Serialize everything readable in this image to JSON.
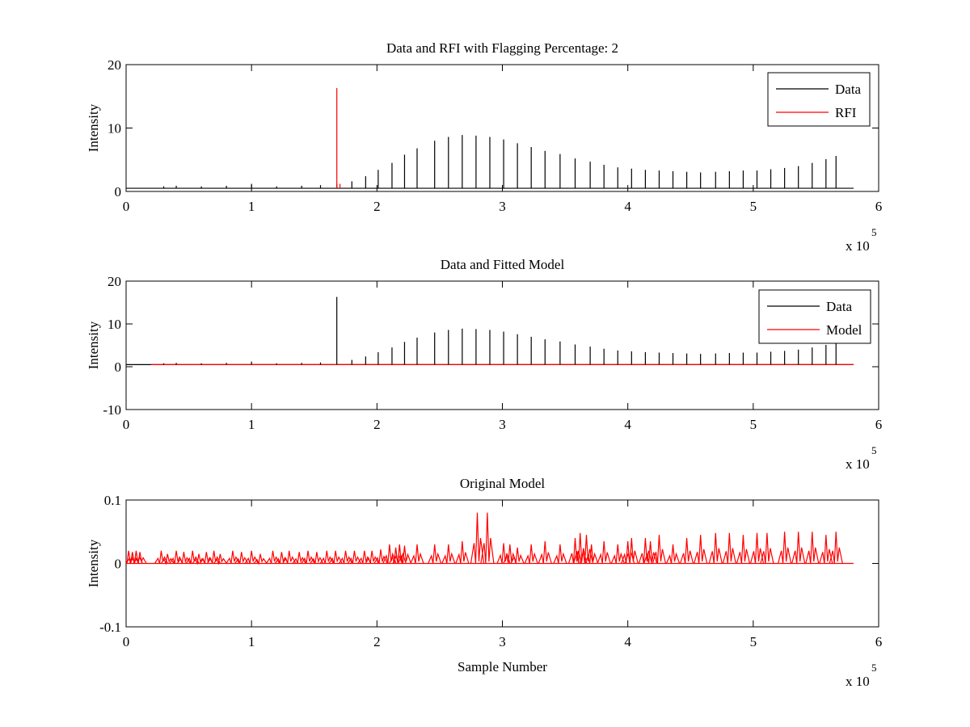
{
  "figure": {
    "colors": {
      "data": "#000000",
      "rfi": "#ff0000",
      "model": "#ff0000"
    }
  },
  "chart_data": [
    {
      "type": "line",
      "title": "Data and RFI with Flagging Percentage: 2",
      "xlabel": "",
      "ylabel": "Intensity",
      "xlim": [
        0,
        600000
      ],
      "ylim": [
        0,
        20
      ],
      "x_ticks": [
        0,
        1,
        2,
        3,
        4,
        5,
        6
      ],
      "x_tick_labels": [
        "0",
        "1",
        "2",
        "3",
        "4",
        "5",
        "6"
      ],
      "x_multiplier_label": "x 10",
      "x_multiplier_exp": "5",
      "y_ticks": [
        0,
        10,
        20
      ],
      "y_tick_labels": [
        "0",
        "10",
        "20"
      ],
      "legend_position": "top-right",
      "baseline": 0.5,
      "series": [
        {
          "name": "Data",
          "color": "#000000",
          "spikes_x": [
            30000,
            40000,
            60000,
            80000,
            100000,
            120000,
            140000,
            155000,
            168000,
            180000,
            191000,
            201000,
            212000,
            222000,
            232000,
            246000,
            257000,
            268000,
            279000,
            290000,
            301000,
            312000,
            323000,
            334000,
            346000,
            358000,
            370000,
            381000,
            392000,
            403000,
            414000,
            425000,
            436000,
            447000,
            458000,
            470000,
            481000,
            492000,
            503000,
            514000,
            525000,
            536000,
            547000,
            558000,
            566000
          ],
          "spikes_y": [
            0.8,
            0.9,
            0.8,
            0.9,
            1.2,
            0.8,
            0.9,
            1.0,
            1.2,
            1.6,
            2.4,
            3.4,
            4.5,
            5.8,
            6.8,
            8.0,
            8.6,
            8.9,
            8.8,
            8.6,
            8.2,
            7.6,
            7.0,
            6.4,
            5.9,
            5.2,
            4.7,
            4.2,
            3.8,
            3.6,
            3.4,
            3.3,
            3.2,
            3.1,
            3.0,
            3.1,
            3.2,
            3.3,
            3.3,
            3.5,
            3.7,
            4.0,
            4.5,
            5.1,
            5.6
          ]
        },
        {
          "name": "RFI",
          "color": "#ff0000",
          "spikes_x": [
            168000,
            170500
          ],
          "spikes_y": [
            16.3,
            1.2
          ]
        }
      ]
    },
    {
      "type": "line",
      "title": "Data and Fitted Model",
      "xlabel": "",
      "ylabel": "Intensity",
      "xlim": [
        0,
        600000
      ],
      "ylim": [
        -10,
        20
      ],
      "x_ticks": [
        0,
        1,
        2,
        3,
        4,
        5,
        6
      ],
      "x_tick_labels": [
        "0",
        "1",
        "2",
        "3",
        "4",
        "5",
        "6"
      ],
      "x_multiplier_label": "x 10",
      "x_multiplier_exp": "5",
      "y_ticks": [
        -10,
        0,
        10,
        20
      ],
      "y_tick_labels": [
        "-10",
        "0",
        "10",
        "20"
      ],
      "legend_position": "top-right",
      "baseline": 0.5,
      "series": [
        {
          "name": "Data",
          "color": "#000000",
          "spikes_x": [
            30000,
            40000,
            60000,
            80000,
            100000,
            120000,
            140000,
            155000,
            168000,
            180000,
            191000,
            201000,
            212000,
            222000,
            232000,
            246000,
            257000,
            268000,
            279000,
            290000,
            301000,
            312000,
            323000,
            334000,
            346000,
            358000,
            370000,
            381000,
            392000,
            403000,
            414000,
            425000,
            436000,
            447000,
            458000,
            470000,
            481000,
            492000,
            503000,
            514000,
            525000,
            536000,
            547000,
            558000,
            566000
          ],
          "spikes_y": [
            0.8,
            0.9,
            0.8,
            0.9,
            1.2,
            0.8,
            0.9,
            1.0,
            16.3,
            1.6,
            2.4,
            3.4,
            4.5,
            5.8,
            6.8,
            8.0,
            8.6,
            8.9,
            8.8,
            8.6,
            8.2,
            7.6,
            7.0,
            6.4,
            5.9,
            5.2,
            4.7,
            4.2,
            3.8,
            3.6,
            3.4,
            3.3,
            3.2,
            3.1,
            3.0,
            3.1,
            3.2,
            3.3,
            3.3,
            3.5,
            3.7,
            4.0,
            4.5,
            5.1,
            5.6
          ]
        },
        {
          "name": "Model",
          "color": "#ff0000",
          "spikes_x": [],
          "spikes_y": []
        }
      ]
    },
    {
      "type": "line",
      "title": "Original Model",
      "xlabel": "Sample Number",
      "ylabel": "Intensity",
      "xlim": [
        0,
        600000
      ],
      "ylim": [
        -0.1,
        0.1
      ],
      "x_ticks": [
        0,
        1,
        2,
        3,
        4,
        5,
        6
      ],
      "x_tick_labels": [
        "0",
        "1",
        "2",
        "3",
        "4",
        "5",
        "6"
      ],
      "x_multiplier_label": "x 10",
      "x_multiplier_exp": "5",
      "y_ticks": [
        -0.1,
        0,
        0.1
      ],
      "y_tick_labels": [
        "-0.1",
        "0",
        "0.1"
      ],
      "legend_position": "none",
      "baseline": 0,
      "series": [
        {
          "name": "",
          "color": "#ff0000",
          "spikes_x": [
            2000,
            5000,
            8000,
            11000,
            28000,
            33000,
            40000,
            46000,
            53000,
            58000,
            64000,
            70000,
            75000,
            85000,
            92000,
            100000,
            107000,
            117000,
            124000,
            130000,
            138000,
            145000,
            152000,
            160000,
            167000,
            175000,
            182000,
            190000,
            196000,
            203000,
            210000,
            215000,
            218000,
            222000,
            232000,
            246000,
            257000,
            268000,
            280000,
            288000,
            301000,
            306000,
            312000,
            323000,
            334000,
            346000,
            358000,
            362000,
            367000,
            371000,
            381000,
            392000,
            400000,
            403000,
            414000,
            418000,
            425000,
            436000,
            447000,
            458000,
            470000,
            481000,
            492000,
            503000,
            511000,
            525000,
            536000,
            547000,
            558000,
            566000
          ],
          "spikes_y": [
            0.02,
            0.018,
            0.02,
            0.018,
            0.02,
            0.015,
            0.02,
            0.018,
            0.02,
            0.015,
            0.018,
            0.02,
            0.015,
            0.02,
            0.018,
            0.02,
            0.015,
            0.02,
            0.018,
            0.02,
            0.018,
            0.02,
            0.018,
            0.02,
            0.02,
            0.02,
            0.02,
            0.02,
            0.02,
            0.022,
            0.03,
            0.025,
            0.03,
            0.028,
            0.03,
            0.03,
            0.03,
            0.035,
            0.08,
            0.08,
            0.032,
            0.03,
            0.025,
            0.03,
            0.035,
            0.03,
            0.04,
            0.048,
            0.045,
            0.03,
            0.035,
            0.03,
            0.035,
            0.04,
            0.04,
            0.035,
            0.045,
            0.03,
            0.04,
            0.045,
            0.048,
            0.048,
            0.045,
            0.048,
            0.048,
            0.05,
            0.05,
            0.05,
            0.045,
            0.05
          ]
        }
      ]
    }
  ]
}
